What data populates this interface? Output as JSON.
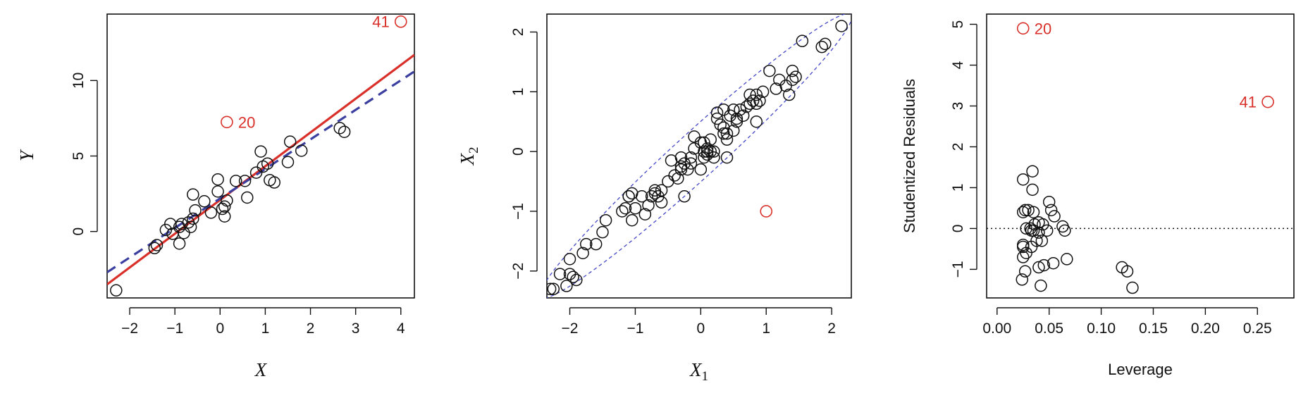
{
  "colors": {
    "black": "#111111",
    "red": "#d9302a",
    "blue": "#3b3fa0",
    "ellipse": "#4347c4"
  },
  "chart_data": [
    {
      "type": "scatter",
      "xlabel": "X",
      "ylabel": "Y",
      "xlim": [
        -2.5,
        4.3
      ],
      "ylim": [
        -4.4,
        14.4
      ],
      "xticks": [
        -2,
        -1,
        0,
        1,
        2,
        3,
        4
      ],
      "yticks": [
        0,
        5,
        10
      ],
      "xtick_labels": [
        "−2",
        "−1",
        "0",
        "1",
        "2",
        "3",
        "4"
      ],
      "ytick_labels": [
        "0",
        "5",
        "10"
      ],
      "points": [
        [
          -2.3,
          -3.9
        ],
        [
          -1.45,
          -1.1
        ],
        [
          -1.4,
          -0.9
        ],
        [
          -1.2,
          0.1
        ],
        [
          -1.1,
          0.5
        ],
        [
          -1.05,
          -0.15
        ],
        [
          -0.9,
          -0.8
        ],
        [
          -0.9,
          0.3
        ],
        [
          -0.85,
          0.5
        ],
        [
          -0.8,
          -0.1
        ],
        [
          -0.7,
          0.6
        ],
        [
          -0.65,
          0.3
        ],
        [
          -0.6,
          0.85
        ],
        [
          -0.6,
          2.45
        ],
        [
          -0.55,
          1.4
        ],
        [
          -0.35,
          2.0
        ],
        [
          -0.2,
          1.25
        ],
        [
          -0.05,
          2.65
        ],
        [
          -0.05,
          3.45
        ],
        [
          0.05,
          1.5
        ],
        [
          0.1,
          1.0
        ],
        [
          0.1,
          1.65
        ],
        [
          0.15,
          2.05
        ],
        [
          0.35,
          3.35
        ],
        [
          0.55,
          3.35
        ],
        [
          0.6,
          2.25
        ],
        [
          0.8,
          3.9
        ],
        [
          0.9,
          5.3
        ],
        [
          0.95,
          4.3
        ],
        [
          1.05,
          4.5
        ],
        [
          1.1,
          3.4
        ],
        [
          1.2,
          3.25
        ],
        [
          1.5,
          4.6
        ],
        [
          1.55,
          5.95
        ],
        [
          1.8,
          5.35
        ],
        [
          2.65,
          6.85
        ],
        [
          2.75,
          6.6
        ]
      ],
      "highlighted": [
        {
          "label": "20",
          "x": 0.15,
          "y": 7.25
        },
        {
          "label": "41",
          "x": 4.0,
          "y": 13.9
        }
      ],
      "lines": [
        {
          "style": "solid",
          "color": "red",
          "x": [
            -2.5,
            4.3
          ],
          "y": [
            -3.5,
            11.7
          ]
        },
        {
          "style": "dashed",
          "color": "blue",
          "x": [
            -2.5,
            4.3
          ],
          "y": [
            -2.7,
            10.6
          ]
        }
      ]
    },
    {
      "type": "scatter",
      "xlabel": "X",
      "xlabel_sub": "1",
      "ylabel": "X",
      "ylabel_sub": "2",
      "xlim": [
        -2.35,
        2.3
      ],
      "ylim": [
        -2.45,
        2.3
      ],
      "xticks": [
        -2,
        -1,
        0,
        1,
        2
      ],
      "yticks": [
        -2,
        -1,
        0,
        1,
        2
      ],
      "xtick_labels": [
        "−2",
        "−1",
        "0",
        "1",
        "2"
      ],
      "ytick_labels": [
        "−2",
        "−1",
        "0",
        "1",
        "2"
      ],
      "ellipse": {
        "center": [
          -0.07,
          -0.07
        ],
        "angle_deg": 45,
        "semi_major": 3.35,
        "semi_minor": 0.36
      },
      "points": [
        [
          -2.3,
          -2.3
        ],
        [
          -2.25,
          -2.3
        ],
        [
          -2.15,
          -2.05
        ],
        [
          -2.05,
          -2.25
        ],
        [
          -2.0,
          -2.05
        ],
        [
          -1.95,
          -2.1
        ],
        [
          -1.9,
          -2.15
        ],
        [
          -2.0,
          -1.8
        ],
        [
          -1.8,
          -1.7
        ],
        [
          -1.75,
          -1.55
        ],
        [
          -1.6,
          -1.55
        ],
        [
          -1.5,
          -1.35
        ],
        [
          -1.45,
          -1.15
        ],
        [
          -1.2,
          -1.0
        ],
        [
          -1.15,
          -0.95
        ],
        [
          -1.1,
          -0.75
        ],
        [
          -1.1,
          -0.75
        ],
        [
          -1.05,
          -1.15
        ],
        [
          -1.05,
          -0.7
        ],
        [
          -1.0,
          -0.95
        ],
        [
          -0.9,
          -0.75
        ],
        [
          -0.85,
          -1.05
        ],
        [
          -0.8,
          -0.9
        ],
        [
          -0.75,
          -0.75
        ],
        [
          -0.7,
          -0.7
        ],
        [
          -0.7,
          -0.65
        ],
        [
          -0.65,
          -0.75
        ],
        [
          -0.6,
          -0.85
        ],
        [
          -0.6,
          -0.65
        ],
        [
          -0.5,
          -0.5
        ],
        [
          -0.45,
          -0.15
        ],
        [
          -0.4,
          -0.4
        ],
        [
          -0.35,
          -0.45
        ],
        [
          -0.3,
          -0.3
        ],
        [
          -0.3,
          -0.25
        ],
        [
          -0.3,
          -0.1
        ],
        [
          -0.25,
          -0.75
        ],
        [
          -0.25,
          -0.2
        ],
        [
          -0.2,
          -0.3
        ],
        [
          -0.15,
          -0.2
        ],
        [
          -0.15,
          -0.1
        ],
        [
          -0.1,
          0.05
        ],
        [
          -0.1,
          0.25
        ],
        [
          0.0,
          0.15
        ],
        [
          0.0,
          -0.3
        ],
        [
          0.05,
          0.0
        ],
        [
          0.05,
          -0.1
        ],
        [
          0.05,
          0.15
        ],
        [
          0.1,
          0.05
        ],
        [
          0.1,
          0.0
        ],
        [
          0.1,
          -0.05
        ],
        [
          0.15,
          0.2
        ],
        [
          0.15,
          0.0
        ],
        [
          0.2,
          0.0
        ],
        [
          0.2,
          -0.1
        ],
        [
          0.25,
          0.55
        ],
        [
          0.25,
          0.65
        ],
        [
          0.3,
          0.45
        ],
        [
          0.35,
          0.4
        ],
        [
          0.35,
          0.7
        ],
        [
          0.35,
          0.3
        ],
        [
          0.4,
          -0.1
        ],
        [
          0.4,
          0.2
        ],
        [
          0.4,
          0.3
        ],
        [
          0.45,
          0.6
        ],
        [
          0.5,
          0.7
        ],
        [
          0.5,
          0.35
        ],
        [
          0.55,
          0.5
        ],
        [
          0.55,
          0.55
        ],
        [
          0.6,
          0.7
        ],
        [
          0.65,
          0.6
        ],
        [
          0.7,
          0.75
        ],
        [
          0.75,
          0.8
        ],
        [
          0.75,
          0.95
        ],
        [
          0.8,
          0.85
        ],
        [
          0.85,
          0.8
        ],
        [
          0.85,
          0.5
        ],
        [
          0.85,
          0.95
        ],
        [
          0.9,
          0.85
        ],
        [
          0.95,
          1.0
        ],
        [
          1.05,
          1.35
        ],
        [
          1.15,
          1.05
        ],
        [
          1.2,
          1.2
        ],
        [
          1.3,
          1.1
        ],
        [
          1.35,
          0.95
        ],
        [
          1.4,
          1.35
        ],
        [
          1.4,
          1.2
        ],
        [
          1.45,
          1.25
        ],
        [
          1.55,
          1.85
        ],
        [
          1.85,
          1.75
        ],
        [
          1.9,
          1.8
        ],
        [
          2.15,
          2.1
        ]
      ],
      "highlighted": [
        {
          "label": "",
          "x": 1.0,
          "y": -1.0
        }
      ]
    },
    {
      "type": "scatter",
      "xlabel": "Leverage",
      "ylabel": "Studentized Residuals",
      "xlim": [
        -0.01,
        0.285
      ],
      "ylim": [
        -1.7,
        5.25
      ],
      "xticks": [
        0.0,
        0.05,
        0.1,
        0.15,
        0.2,
        0.25
      ],
      "yticks": [
        -1,
        0,
        1,
        2,
        3,
        4,
        5
      ],
      "xtick_labels": [
        "0.00",
        "0.05",
        "0.10",
        "0.15",
        "0.20",
        "0.25"
      ],
      "ytick_labels": [
        "−1",
        "0",
        "1",
        "2",
        "3",
        "4",
        "5"
      ],
      "reference_line": {
        "y": 0,
        "style": "dotted"
      },
      "points": [
        [
          0.024,
          -1.25
        ],
        [
          0.025,
          -0.7
        ],
        [
          0.025,
          -0.45
        ],
        [
          0.025,
          -0.4
        ],
        [
          0.025,
          0.4
        ],
        [
          0.025,
          1.2
        ],
        [
          0.027,
          0.45
        ],
        [
          0.027,
          -1.05
        ],
        [
          0.028,
          0.0
        ],
        [
          0.028,
          -0.6
        ],
        [
          0.03,
          0.45
        ],
        [
          0.032,
          0.0
        ],
        [
          0.033,
          -0.05
        ],
        [
          0.033,
          -0.45
        ],
        [
          0.034,
          0.95
        ],
        [
          0.034,
          1.4
        ],
        [
          0.035,
          -0.05
        ],
        [
          0.035,
          0.4
        ],
        [
          0.036,
          0.1
        ],
        [
          0.038,
          -0.3
        ],
        [
          0.04,
          0.15
        ],
        [
          0.04,
          -0.1
        ],
        [
          0.04,
          -0.95
        ],
        [
          0.042,
          -1.4
        ],
        [
          0.043,
          -0.3
        ],
        [
          0.044,
          0.1
        ],
        [
          0.045,
          -0.9
        ],
        [
          0.048,
          -0.05
        ],
        [
          0.05,
          0.65
        ],
        [
          0.052,
          0.45
        ],
        [
          0.054,
          -0.85
        ],
        [
          0.055,
          0.3
        ],
        [
          0.063,
          0.05
        ],
        [
          0.065,
          -0.05
        ],
        [
          0.067,
          -0.75
        ],
        [
          0.12,
          -0.95
        ],
        [
          0.125,
          -1.05
        ],
        [
          0.13,
          -1.45
        ]
      ],
      "highlighted": [
        {
          "label": "20",
          "x": 0.025,
          "y": 4.9
        },
        {
          "label": "41",
          "x": 0.26,
          "y": 3.1
        }
      ]
    }
  ]
}
